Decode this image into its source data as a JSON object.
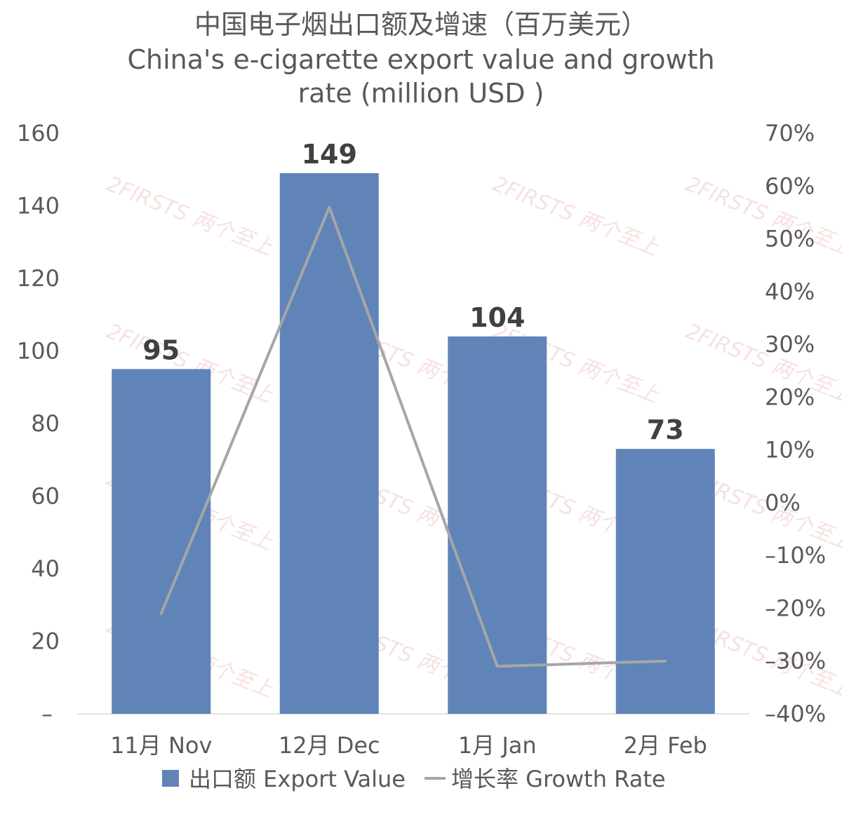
{
  "chart_data": {
    "type": "bar",
    "title_lines": [
      "中国电子烟出口额及增速（百万美元）",
      "China's e-cigarette export value and growth",
      "rate (million USD )"
    ],
    "categories": [
      "11月 Nov",
      "12月 Dec",
      "1月 Jan",
      "2月 Feb"
    ],
    "series": [
      {
        "name": "出口额 Export Value",
        "type": "bar",
        "axis": "left",
        "color": "#6084b8",
        "values": [
          95,
          149,
          104,
          73
        ],
        "data_labels": [
          "95",
          "149",
          "104",
          "73"
        ]
      },
      {
        "name": "增长率 Growth Rate",
        "type": "line",
        "axis": "right",
        "color": "#a6a6a6",
        "values": [
          -21,
          56,
          -31,
          -30
        ]
      }
    ],
    "y_left": {
      "range": [
        0,
        160
      ],
      "ticks": [
        0,
        20,
        40,
        60,
        80,
        100,
        120,
        140,
        160
      ],
      "tick_labels": [
        "–",
        "20",
        "40",
        "60",
        "80",
        "100",
        "120",
        "140",
        "160"
      ]
    },
    "y_right": {
      "range": [
        -40,
        70
      ],
      "ticks": [
        -40,
        -30,
        -20,
        -10,
        0,
        10,
        20,
        30,
        40,
        50,
        60,
        70
      ],
      "tick_labels": [
        "–40%",
        "–30%",
        "–20%",
        "–10%",
        "0%",
        "10%",
        "20%",
        "30%",
        "40%",
        "50%",
        "60%",
        "70%"
      ]
    },
    "grid": false,
    "legend_position": "bottom"
  },
  "watermark": {
    "text": "2FIRSTS 两个至上"
  }
}
